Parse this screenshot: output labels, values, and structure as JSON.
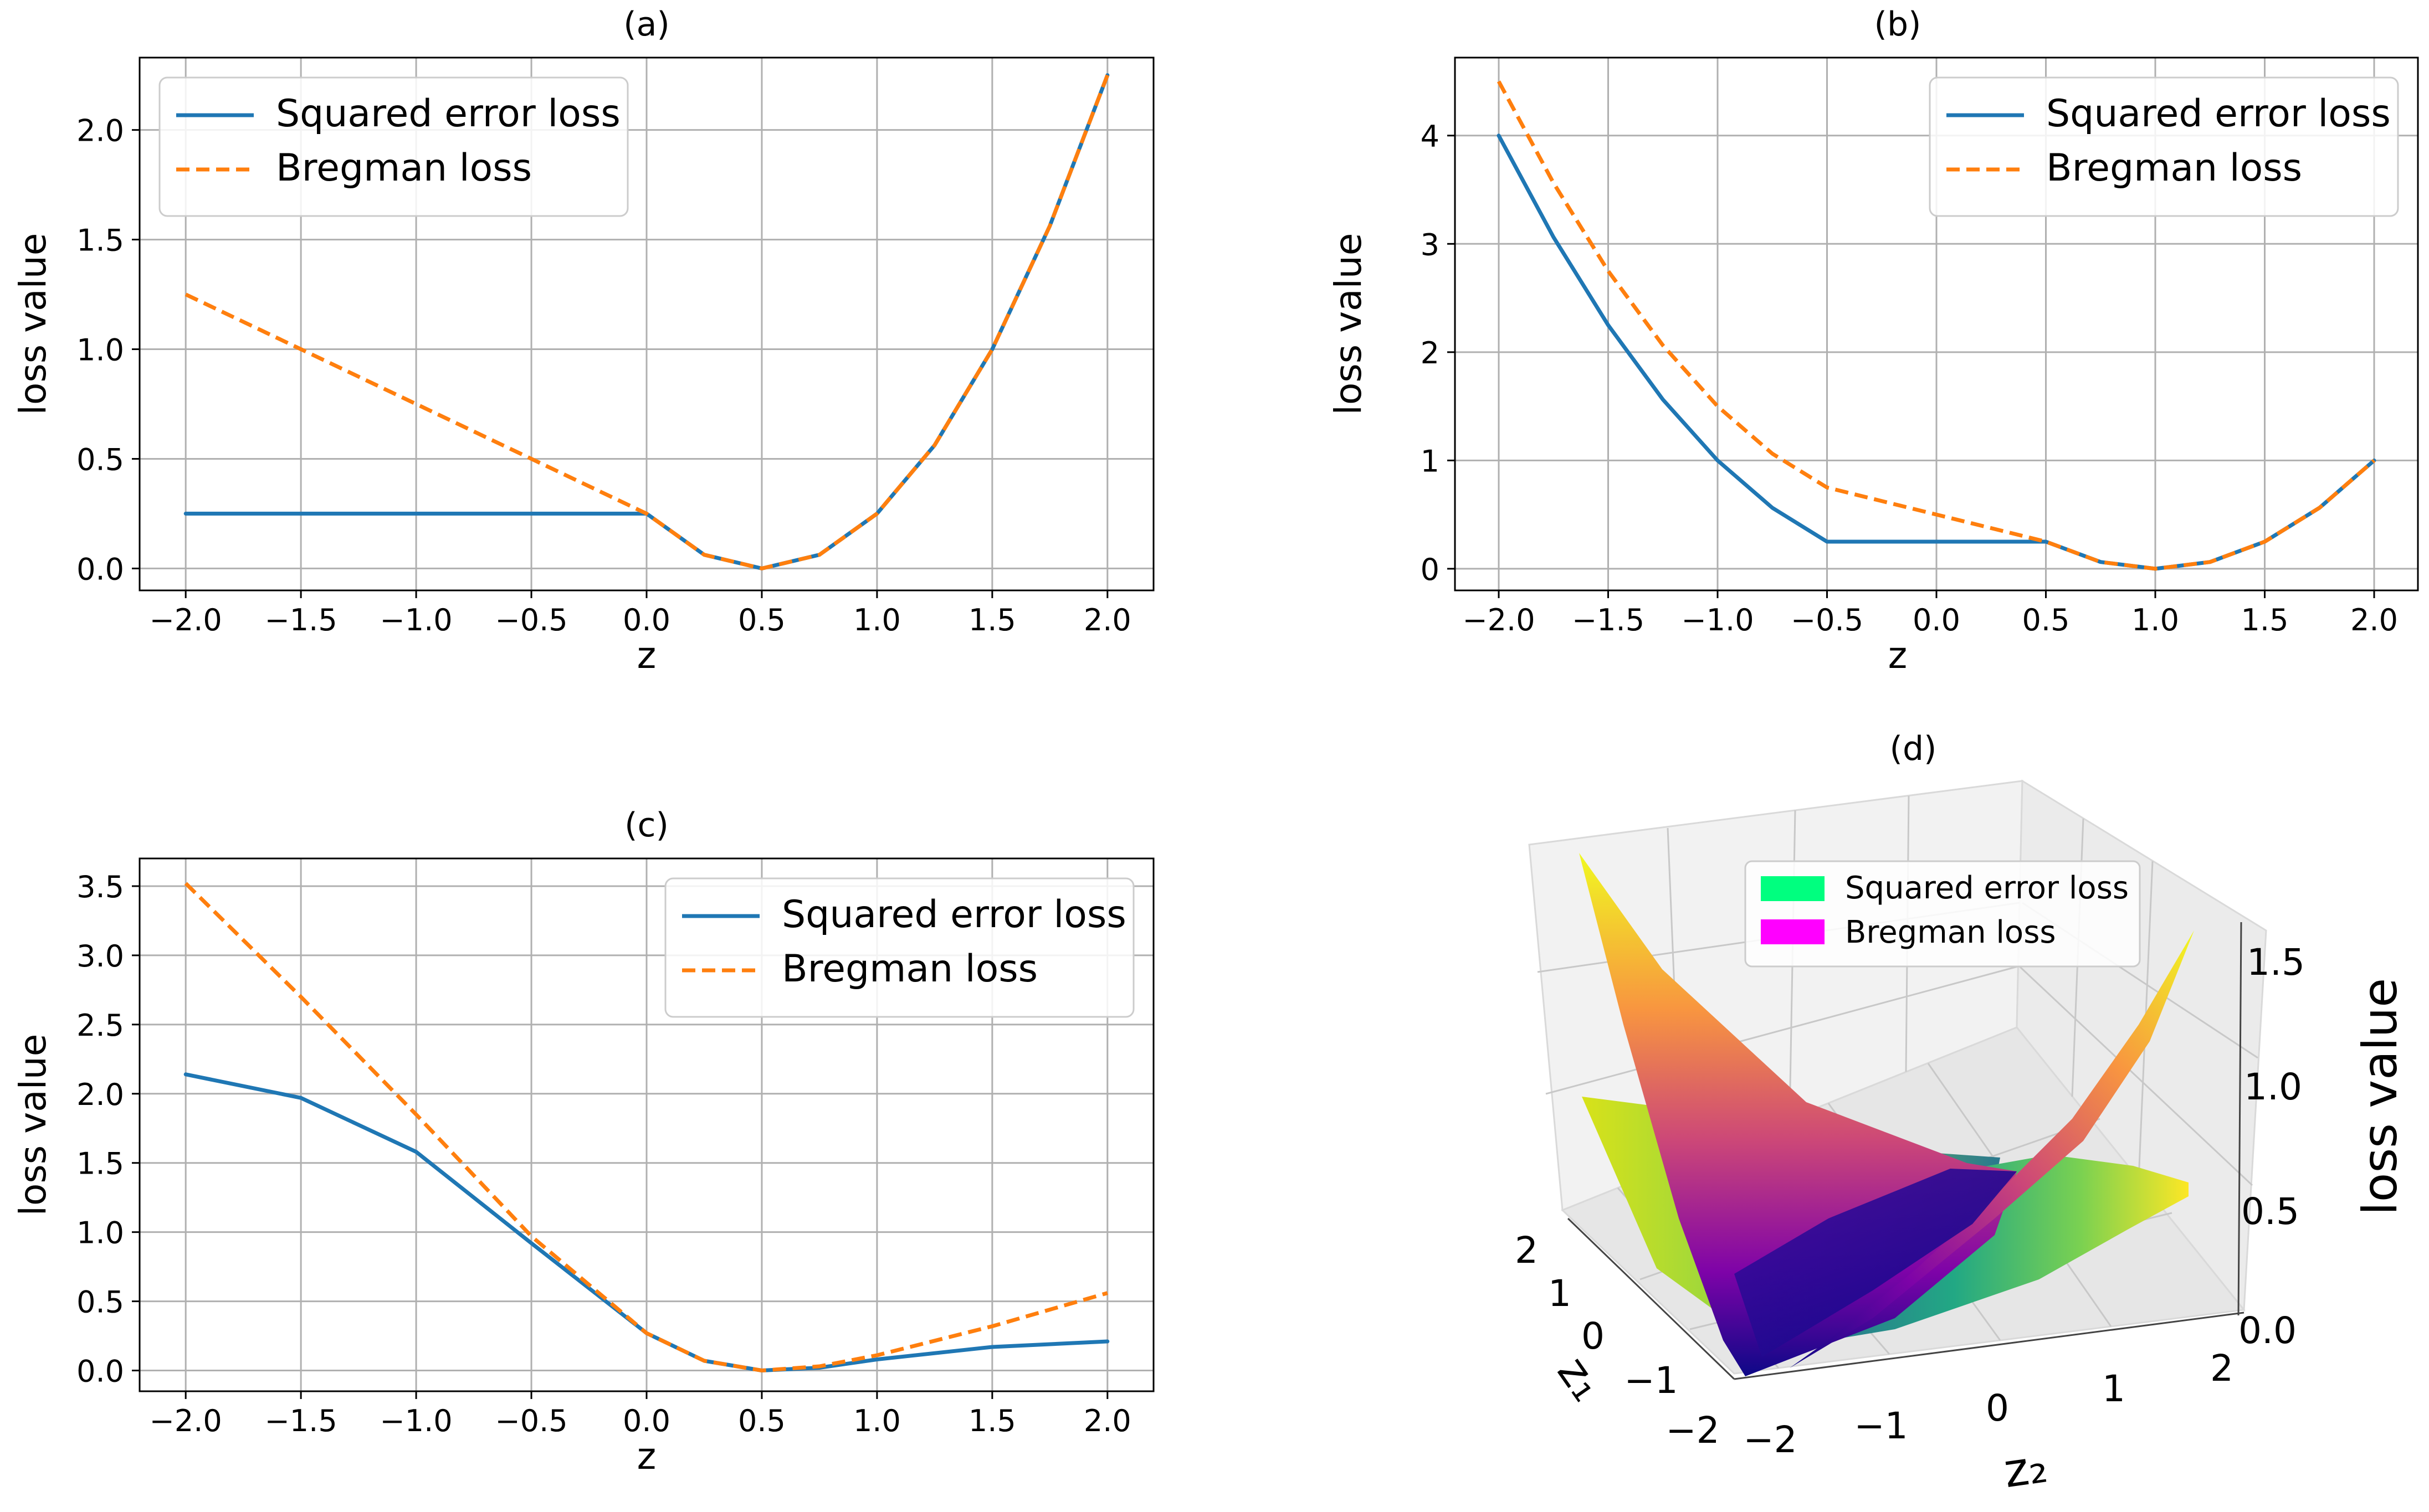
{
  "legend_colors": {
    "squared": "#1f77b4",
    "bregman": "#ff7f0e",
    "squared_3d": "#00ff7f",
    "bregman_3d": "#ff00ff"
  },
  "chart_data": [
    {
      "type": "line",
      "title": "(a)",
      "xlabel": "z",
      "ylabel": "loss value",
      "xlim": [
        -2.2,
        2.2
      ],
      "ylim": [
        -0.1,
        2.33
      ],
      "xticks": [
        -2.0,
        -1.5,
        -1.0,
        -0.5,
        0.0,
        0.5,
        1.0,
        1.5,
        2.0
      ],
      "xtick_labels": [
        "−2.0",
        "−1.5",
        "−1.0",
        "−0.5",
        "0.0",
        "0.5",
        "1.0",
        "1.5",
        "2.0"
      ],
      "yticks": [
        0.0,
        0.5,
        1.0,
        1.5,
        2.0
      ],
      "ytick_labels": [
        "0.0",
        "0.5",
        "1.0",
        "1.5",
        "2.0"
      ],
      "grid": true,
      "legend_position": "upper left",
      "series": [
        {
          "name": "Squared error loss",
          "style": "solid",
          "x": [
            -2.0,
            -1.0,
            0.0,
            0.25,
            0.5,
            0.75,
            1.0,
            1.25,
            1.5,
            1.75,
            2.0
          ],
          "y": [
            0.25,
            0.25,
            0.25,
            0.0625,
            0.0,
            0.0625,
            0.25,
            0.5625,
            1.0,
            1.5625,
            2.25
          ]
        },
        {
          "name": "Bregman loss",
          "style": "dashed",
          "x": [
            -2.0,
            -1.0,
            0.0,
            0.25,
            0.5,
            0.75,
            1.0,
            1.25,
            1.5,
            1.75,
            2.0
          ],
          "y": [
            1.25,
            0.75,
            0.25,
            0.0625,
            0.0,
            0.0625,
            0.25,
            0.5625,
            1.0,
            1.5625,
            2.25
          ]
        }
      ]
    },
    {
      "type": "line",
      "title": "(b)",
      "xlabel": "z",
      "ylabel": "loss value",
      "xlim": [
        -2.2,
        2.2
      ],
      "ylim": [
        -0.2,
        4.72
      ],
      "xticks": [
        -2.0,
        -1.5,
        -1.0,
        -0.5,
        0.0,
        0.5,
        1.0,
        1.5,
        2.0
      ],
      "xtick_labels": [
        "−2.0",
        "−1.5",
        "−1.0",
        "−0.5",
        "0.0",
        "0.5",
        "1.0",
        "1.5",
        "2.0"
      ],
      "yticks": [
        0,
        1,
        2,
        3,
        4
      ],
      "ytick_labels": [
        "0",
        "1",
        "2",
        "3",
        "4"
      ],
      "grid": true,
      "legend_position": "upper right",
      "series": [
        {
          "name": "Squared error loss",
          "style": "solid",
          "x": [
            -2.0,
            -1.75,
            -1.5,
            -1.25,
            -1.0,
            -0.75,
            -0.5,
            0.0,
            0.5,
            0.75,
            1.0,
            1.25,
            1.5,
            1.75,
            2.0
          ],
          "y": [
            4.0,
            3.0625,
            2.25,
            1.5625,
            1.0,
            0.5625,
            0.25,
            0.25,
            0.25,
            0.0625,
            0.0,
            0.0625,
            0.25,
            0.5625,
            1.0
          ]
        },
        {
          "name": "Bregman loss",
          "style": "dashed",
          "x": [
            -2.0,
            -1.75,
            -1.5,
            -1.25,
            -1.0,
            -0.75,
            -0.5,
            0.0,
            0.5,
            0.75,
            1.0,
            1.25,
            1.5,
            1.75,
            2.0
          ],
          "y": [
            4.5,
            3.5625,
            2.75,
            2.0625,
            1.5,
            1.0625,
            0.75,
            0.5,
            0.25,
            0.0625,
            0.0,
            0.0625,
            0.25,
            0.5625,
            1.0
          ]
        }
      ]
    },
    {
      "type": "line",
      "title": "(c)",
      "xlabel": "z",
      "ylabel": "loss value",
      "xlim": [
        -2.2,
        2.2
      ],
      "ylim": [
        -0.15,
        3.7
      ],
      "xticks": [
        -2.0,
        -1.5,
        -1.0,
        -0.5,
        0.0,
        0.5,
        1.0,
        1.5,
        2.0
      ],
      "xtick_labels": [
        "−2.0",
        "−1.5",
        "−1.0",
        "−0.5",
        "0.0",
        "0.5",
        "1.0",
        "1.5",
        "2.0"
      ],
      "yticks": [
        0.0,
        0.5,
        1.0,
        1.5,
        2.0,
        2.5,
        3.0,
        3.5
      ],
      "ytick_labels": [
        "0.0",
        "0.5",
        "1.0",
        "1.5",
        "2.0",
        "2.5",
        "3.0",
        "3.5"
      ],
      "grid": true,
      "legend_position": "upper right",
      "series": [
        {
          "name": "Squared error loss",
          "style": "solid",
          "x": [
            -2.0,
            -1.5,
            -1.0,
            -0.5,
            0.0,
            0.25,
            0.5,
            0.75,
            1.0,
            1.5,
            2.0
          ],
          "y": [
            2.14,
            1.97,
            1.58,
            0.92,
            0.27,
            0.07,
            0.0,
            0.02,
            0.08,
            0.17,
            0.21
          ]
        },
        {
          "name": "Bregman loss",
          "style": "dashed",
          "x": [
            -2.0,
            -1.5,
            -1.0,
            -0.5,
            0.0,
            0.25,
            0.5,
            0.75,
            1.0,
            1.5,
            2.0
          ],
          "y": [
            3.52,
            2.7,
            1.85,
            0.97,
            0.27,
            0.07,
            0.0,
            0.03,
            0.11,
            0.32,
            0.56
          ]
        }
      ]
    },
    {
      "type": "surface",
      "title": "(d)",
      "xlabel": "z₂",
      "ylabel": "z₁",
      "zlabel": "loss value",
      "xticks": [
        "−2",
        "−1",
        "0",
        "1",
        "2"
      ],
      "yticks": [
        "−2",
        "−1",
        "0",
        "1",
        "2"
      ],
      "zticks": [
        "0.0",
        "0.5",
        "1.0",
        "1.5"
      ],
      "legend": [
        {
          "name": "Squared error loss",
          "color_key": "squared_3d"
        },
        {
          "name": "Bregman loss",
          "color_key": "bregman_3d"
        }
      ]
    }
  ]
}
